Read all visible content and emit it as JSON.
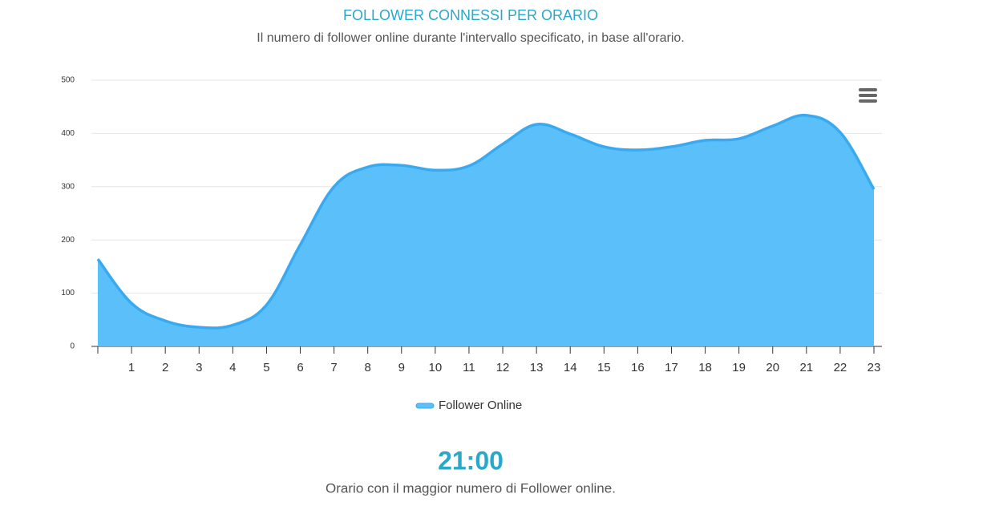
{
  "chart_data": {
    "type": "area",
    "title": "FOLLOWER CONNESSI PER ORARIO",
    "subtitle": "Il numero di follower online durante l'intervallo specificato, in base all'orario.",
    "categories": [
      null,
      "1",
      "2",
      "3",
      "4",
      "5",
      "6",
      "7",
      "8",
      "9",
      "10",
      "11",
      "12",
      "13",
      "14",
      "15",
      "16",
      "17",
      "18",
      "19",
      "20",
      "21",
      "22",
      "23"
    ],
    "series": [
      {
        "name": "Follower Online",
        "color": "#5bbffa",
        "values": [
          164,
          81,
          48,
          36,
          40,
          78,
          191,
          300,
          337,
          340,
          331,
          339,
          380,
          417,
          399,
          375,
          369,
          375,
          387,
          390,
          414,
          434,
          402,
          295
        ]
      }
    ],
    "ylim": [
      0,
      500
    ],
    "yticks": [
      0,
      100,
      200,
      300,
      400,
      500
    ],
    "grid": true,
    "legend": "bottom"
  },
  "highlight": {
    "value": "21:00",
    "caption": "Orario con il maggior numero di Follower online."
  }
}
